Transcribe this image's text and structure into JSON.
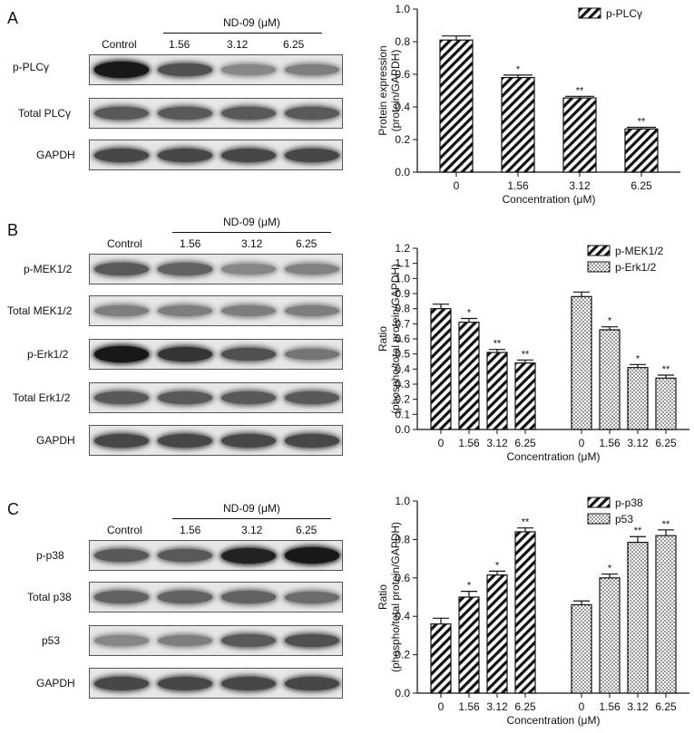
{
  "panels": [
    {
      "letter": "A",
      "header": "ND-09 (μM)",
      "lanes": [
        "Control",
        "1.56",
        "3.12",
        "6.25"
      ],
      "blots": [
        {
          "label": "p-PLCγ",
          "intensity": [
            0.95,
            0.65,
            0.35,
            0.4
          ]
        },
        {
          "label": "Total PLCγ",
          "intensity": [
            0.6,
            0.6,
            0.6,
            0.6
          ]
        },
        {
          "label": "GAPDH",
          "intensity": [
            0.7,
            0.7,
            0.7,
            0.7
          ]
        }
      ]
    },
    {
      "letter": "B",
      "header": "ND-09 (μM)",
      "lanes": [
        "Control",
        "1.56",
        "3.12",
        "6.25"
      ],
      "blots": [
        {
          "label": "p-MEK1/2",
          "intensity": [
            0.6,
            0.55,
            0.35,
            0.38
          ]
        },
        {
          "label": "Total MEK1/2",
          "intensity": [
            0.4,
            0.4,
            0.4,
            0.4
          ]
        },
        {
          "label": "p-Erk1/2",
          "intensity": [
            0.95,
            0.8,
            0.65,
            0.45
          ]
        },
        {
          "label": "Total Erk1/2",
          "intensity": [
            0.6,
            0.6,
            0.6,
            0.6
          ]
        },
        {
          "label": "GAPDH",
          "intensity": [
            0.7,
            0.7,
            0.7,
            0.7
          ]
        }
      ]
    },
    {
      "letter": "C",
      "header": "ND-09 (μM)",
      "lanes": [
        "Control",
        "1.56",
        "3.12",
        "6.25"
      ],
      "blots": [
        {
          "label": "p-p38",
          "intensity": [
            0.6,
            0.6,
            0.9,
            0.95
          ]
        },
        {
          "label": "Total p38",
          "intensity": [
            0.55,
            0.55,
            0.55,
            0.5
          ]
        },
        {
          "label": "p53",
          "intensity": [
            0.35,
            0.4,
            0.6,
            0.65
          ]
        },
        {
          "label": "GAPDH",
          "intensity": [
            0.7,
            0.7,
            0.7,
            0.7
          ]
        }
      ]
    }
  ],
  "chart_data": [
    {
      "type": "bar",
      "categories": [
        "0",
        "1.56",
        "3.12",
        "6.25"
      ],
      "series": [
        {
          "name": "p-PLCγ",
          "pattern": "hatch",
          "values": [
            0.81,
            0.58,
            0.455,
            0.265
          ],
          "errors": [
            0.025,
            0.015,
            0.01,
            0.01
          ],
          "marks": [
            "",
            "*",
            "**",
            "**"
          ]
        }
      ],
      "xlabel": "Concentration (μM)",
      "ylabel_lines": [
        "Protein expression",
        "(protein/GAPDH)"
      ],
      "ylim": [
        0,
        1.0
      ],
      "yticks": [
        "0.0",
        "0.2",
        "0.4",
        "0.6",
        "0.8",
        "1.0"
      ],
      "legend_position": "top-right"
    },
    {
      "type": "bar",
      "categories": [
        "0",
        "1.56",
        "3.12",
        "6.25"
      ],
      "series": [
        {
          "name": "p-MEK1/2",
          "pattern": "hatch",
          "values": [
            0.8,
            0.71,
            0.51,
            0.44
          ],
          "errors": [
            0.03,
            0.025,
            0.02,
            0.02
          ],
          "marks": [
            "",
            "*",
            "**",
            "**"
          ]
        },
        {
          "name": "p-Erk1/2",
          "pattern": "dots",
          "values": [
            0.88,
            0.66,
            0.41,
            0.34
          ],
          "errors": [
            0.03,
            0.02,
            0.02,
            0.02
          ],
          "marks": [
            "",
            "*",
            "*",
            "**"
          ]
        }
      ],
      "xlabel": "Concentration (μM)",
      "ylabel_lines": [
        "Ratio",
        "(phospho/total protein/GAPDH)"
      ],
      "ylim": [
        0,
        1.2
      ],
      "yticks": [
        "0.0",
        "0.1",
        "0.2",
        "0.3",
        "0.4",
        "0.5",
        "0.6",
        "0.7",
        "0.8",
        "0.9",
        "1.0",
        "1.1",
        "1.2"
      ],
      "legend_position": "top-right"
    },
    {
      "type": "bar",
      "categories": [
        "0",
        "1.56",
        "3.12",
        "6.25"
      ],
      "series": [
        {
          "name": "p-p38",
          "pattern": "hatch",
          "values": [
            0.36,
            0.5,
            0.615,
            0.84
          ],
          "errors": [
            0.03,
            0.03,
            0.02,
            0.02
          ],
          "marks": [
            "",
            "*",
            "*",
            "**"
          ]
        },
        {
          "name": "p53",
          "pattern": "dots",
          "values": [
            0.46,
            0.6,
            0.785,
            0.82
          ],
          "errors": [
            0.02,
            0.02,
            0.03,
            0.03
          ],
          "marks": [
            "",
            "*",
            "**",
            "**"
          ]
        }
      ],
      "xlabel": "Concentration (μM)",
      "ylabel_lines": [
        "Ratio",
        "(phospho/total protein/GAPDH)"
      ],
      "ylim": [
        0,
        1.0
      ],
      "yticks": [
        "0.0",
        "0.2",
        "0.4",
        "0.6",
        "0.8",
        "1.0"
      ],
      "legend_position": "top-right"
    }
  ]
}
